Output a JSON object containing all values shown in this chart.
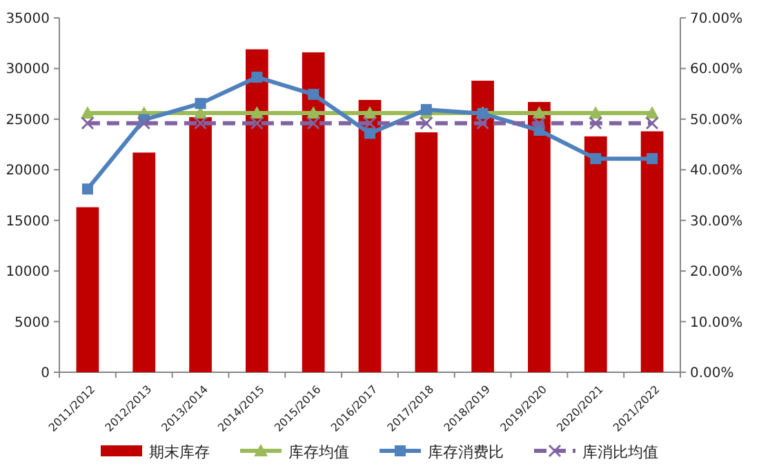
{
  "chart_data": {
    "type": "bar",
    "categories": [
      "2011/2012",
      "2012/2013",
      "2013/2014",
      "2014/2015",
      "2015/2016",
      "2016/2017",
      "2017/2018",
      "2018/2019",
      "2019/2020",
      "2020/2021",
      "2021/2022"
    ],
    "series": [
      {
        "name": "期末库存",
        "color": "#c00000",
        "values": [
          16300,
          21700,
          25200,
          31900,
          31600,
          26900,
          23700,
          28800,
          26700,
          23300,
          23800
        ]
      },
      {
        "name": "库存均值",
        "type": "line",
        "color": "#9bbb59",
        "marker": "triangle",
        "line_style": "solid",
        "values": [
          25600,
          25600,
          25600,
          25600,
          25600,
          25600,
          25600,
          25600,
          25600,
          25600,
          25600
        ]
      },
      {
        "name": "库存消费比",
        "type": "line",
        "axis": "y2",
        "color": "#4f81bd",
        "marker": "square",
        "line_style": "solid",
        "values": [
          36.2,
          49.9,
          53.1,
          58.3,
          54.9,
          47.2,
          51.9,
          51.1,
          47.8,
          42.2,
          42.2
        ]
      },
      {
        "name": "库消比均值",
        "type": "line",
        "axis": "y2",
        "color": "#8064a2",
        "marker": "cross",
        "line_style": "dashed",
        "values": [
          49.2,
          49.2,
          49.2,
          49.2,
          49.2,
          49.2,
          49.2,
          49.2,
          49.2,
          49.2,
          49.2
        ]
      }
    ],
    "ylim": [
      0,
      35000
    ],
    "yticks": [
      0,
      5000,
      10000,
      15000,
      20000,
      25000,
      30000,
      35000
    ],
    "y2lim": [
      0,
      70
    ],
    "y2ticks": [
      {
        "value": 0,
        "label": "0.00%"
      },
      {
        "value": 10,
        "label": "10.00%"
      },
      {
        "value": 20,
        "label": "20.00%"
      },
      {
        "value": 30,
        "label": "30.00%"
      },
      {
        "value": 40,
        "label": "40.00%"
      },
      {
        "value": 50,
        "label": "50.00%"
      },
      {
        "value": 60,
        "label": "60.00%"
      },
      {
        "value": 70,
        "label": "70.00%"
      }
    ],
    "legend": "bottom"
  }
}
